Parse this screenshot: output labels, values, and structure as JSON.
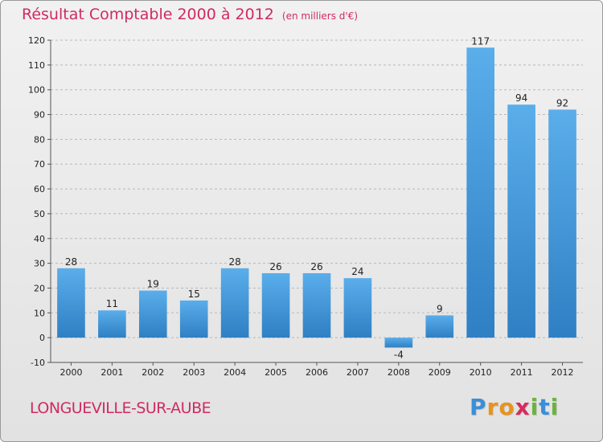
{
  "title": "Résultat Comptable 2000 à 2012",
  "subtitle": "(en milliers d'€)",
  "commune": "LONGUEVILLE-SUR-AUBE",
  "logo": {
    "letters": [
      "P",
      "r",
      "o",
      "x",
      "i",
      "t",
      "i"
    ],
    "colors": [
      "#3a8fd6",
      "#e8931e",
      "#e8931e",
      "#d62c5e",
      "#6cb33f",
      "#3a8fd6",
      "#6cb33f"
    ]
  },
  "colors": {
    "title": "#d02a63",
    "bar_light": "#5aaeea",
    "bar_dark": "#2f7fc4",
    "grid": "#b8b8b8"
  },
  "chart_data": {
    "type": "bar",
    "title": "Résultat Comptable 2000 à 2012",
    "subtitle": "(en milliers d'€)",
    "categories": [
      "2000",
      "2001",
      "2002",
      "2003",
      "2004",
      "2005",
      "2006",
      "2007",
      "2008",
      "2009",
      "2010",
      "2011",
      "2012"
    ],
    "values": [
      28,
      11,
      19,
      15,
      28,
      26,
      26,
      24,
      -4,
      9,
      117,
      94,
      92
    ],
    "ylim": [
      -10,
      120
    ],
    "yticks": [
      -10,
      0,
      10,
      20,
      30,
      40,
      50,
      60,
      70,
      80,
      90,
      100,
      110,
      120
    ],
    "grid": "horizontal dashed",
    "xlabel": "",
    "ylabel": ""
  }
}
